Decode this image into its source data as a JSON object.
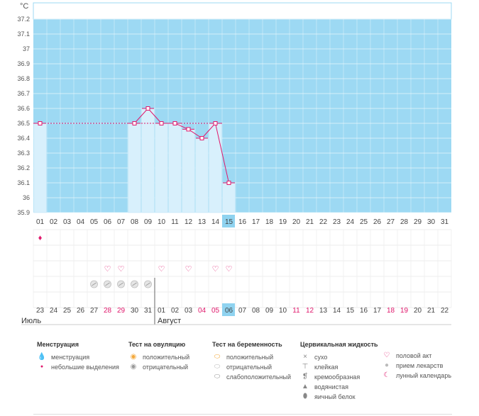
{
  "chart_data": {
    "type": "line",
    "ylabel": "°C",
    "yticks": [
      "37.2",
      "37.1",
      "37",
      "36.9",
      "36.8",
      "36.7",
      "36.6",
      "36.5",
      "36.4",
      "36.3",
      "36.2",
      "36.1",
      "36",
      "35.9"
    ],
    "ylim": [
      35.9,
      37.3
    ],
    "x": [
      "01",
      "02",
      "03",
      "04",
      "05",
      "06",
      "07",
      "08",
      "09",
      "10",
      "11",
      "12",
      "13",
      "14",
      "15",
      "16",
      "17",
      "18",
      "19",
      "20",
      "21",
      "22",
      "23",
      "24",
      "25",
      "26",
      "27",
      "28",
      "29",
      "30",
      "31"
    ],
    "highlight_day": "15",
    "coverline": 36.5,
    "series": [
      {
        "values": [
          36.5,
          null,
          null,
          null,
          null,
          null,
          null,
          36.5,
          36.6,
          36.5,
          36.5,
          36.46,
          36.4,
          36.5,
          36.1,
          null,
          null,
          null,
          null,
          null,
          null,
          null,
          null,
          null,
          null,
          null,
          null,
          null,
          null,
          null,
          null
        ]
      }
    ],
    "menstruation_days": [
      "01"
    ],
    "intercourse_days": [
      "06",
      "07",
      "10",
      "12",
      "14",
      "15"
    ],
    "pregnancy_test_days": [
      "05",
      "06",
      "07",
      "08",
      "09"
    ],
    "calendar_dates": [
      "23",
      "24",
      "25",
      "26",
      "27",
      "28",
      "29",
      "30",
      "31",
      "01",
      "02",
      "03",
      "04",
      "05",
      "06",
      "07",
      "08",
      "09",
      "10",
      "11",
      "12",
      "13",
      "14",
      "15",
      "16",
      "17",
      "18",
      "19",
      "20",
      "21",
      "22"
    ],
    "calendar_red": [
      "28",
      "29",
      "04",
      "05",
      "11",
      "12",
      "18",
      "19"
    ],
    "calendar_highlight": "06",
    "grid": true,
    "colors": {
      "area": "#9dd9f3",
      "bar": "#d8f0fc",
      "line": "#e0186c",
      "highlight": "#8fd3f0",
      "red": "#e0186c"
    }
  },
  "months": {
    "first": "Июль",
    "second": "Август"
  },
  "legend": {
    "menstruation": {
      "title": "Менструация",
      "items": [
        "менструация",
        "небольшие выделения"
      ]
    },
    "ovulation": {
      "title": "Тест на овуляцию",
      "items": [
        "положительный",
        "отрицательный"
      ]
    },
    "pregnancy": {
      "title": "Тест на беременность",
      "items": [
        "положительный",
        "отрицательный",
        "слабоположительный"
      ]
    },
    "cervical": {
      "title": "Цервикальная жидкость",
      "items": [
        "сухо",
        "клейкая",
        "кремообразная",
        "водянистая",
        "яичный белок"
      ]
    },
    "other": {
      "items": [
        "половой акт",
        "прием лекарств",
        "лунный календарь"
      ]
    }
  }
}
